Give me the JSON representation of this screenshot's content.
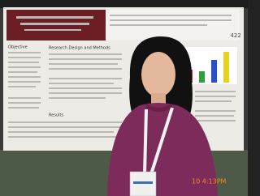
{
  "poster": {
    "number": "422",
    "sections": [
      "Objective",
      "Research Design and Methods",
      "Results"
    ]
  },
  "timestamp": "10 4:13PM"
}
